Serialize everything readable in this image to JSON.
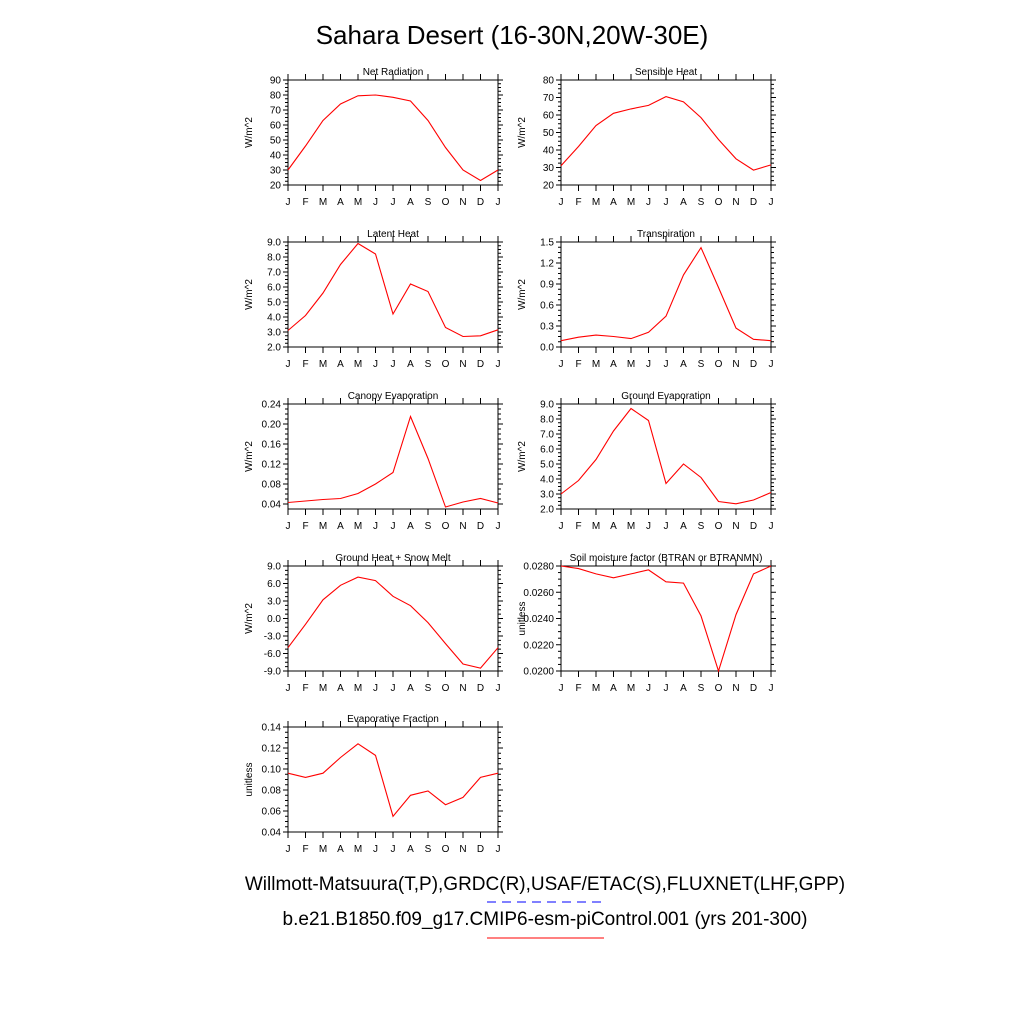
{
  "title": "Sahara Desert (16-30N,20W-30E)",
  "legend": [
    {
      "text": "Willmott-Matsuura(T,P),GRDC(R),USAF/ETAC(S),FLUXNET(LHF,GPP)",
      "color": "#0000ff",
      "dash": "dashed"
    },
    {
      "text": "b.e21.B1850.f09_g17.CMIP6-esm-piControl.001 (yrs 201-300)",
      "color": "#ff0000",
      "dash": "solid"
    }
  ],
  "colors": {
    "series": "#ff0000",
    "axis": "#000000"
  },
  "chart_data": [
    {
      "type": "line",
      "title": "Net Radiation",
      "ylabel": "W/m^2",
      "categories": [
        "J",
        "F",
        "M",
        "A",
        "M",
        "J",
        "J",
        "A",
        "S",
        "O",
        "N",
        "D",
        "J"
      ],
      "ylim": [
        20,
        90
      ],
      "yticks": [
        "20",
        "30",
        "40",
        "50",
        "60",
        "70",
        "80",
        "90"
      ],
      "series": [
        {
          "values": [
            30,
            46,
            63,
            74,
            79.5,
            80,
            78.5,
            76,
            63,
            45,
            30,
            23,
            30
          ]
        }
      ]
    },
    {
      "type": "line",
      "title": "Sensible Heat",
      "ylabel": "W/m^2",
      "categories": [
        "J",
        "F",
        "M",
        "A",
        "M",
        "J",
        "J",
        "A",
        "S",
        "O",
        "N",
        "D",
        "J"
      ],
      "ylim": [
        20,
        80
      ],
      "yticks": [
        "20",
        "30",
        "40",
        "50",
        "60",
        "70",
        "80"
      ],
      "series": [
        {
          "values": [
            31,
            42,
            54,
            61,
            63.5,
            65.5,
            70.5,
            67.5,
            58.5,
            46,
            35,
            28.5,
            31.5
          ]
        }
      ]
    },
    {
      "type": "line",
      "title": "Latent Heat",
      "ylabel": "W/m^2",
      "categories": [
        "J",
        "F",
        "M",
        "A",
        "M",
        "J",
        "J",
        "A",
        "S",
        "O",
        "N",
        "D",
        "J"
      ],
      "ylim": [
        2,
        9
      ],
      "yticks": [
        "2.0",
        "3.0",
        "4.0",
        "5.0",
        "6.0",
        "7.0",
        "8.0",
        "9.0"
      ],
      "series": [
        {
          "values": [
            3.1,
            4.1,
            5.6,
            7.5,
            8.9,
            8.2,
            4.2,
            6.2,
            5.7,
            3.3,
            2.7,
            2.75,
            3.15
          ]
        }
      ]
    },
    {
      "type": "line",
      "title": "Transpiration",
      "ylabel": "W/m^2",
      "categories": [
        "J",
        "F",
        "M",
        "A",
        "M",
        "J",
        "J",
        "A",
        "S",
        "O",
        "N",
        "D",
        "J"
      ],
      "ylim": [
        0,
        1.5
      ],
      "yticks": [
        "0.0",
        "0.3",
        "0.6",
        "0.9",
        "1.2",
        "1.5"
      ],
      "series": [
        {
          "values": [
            0.09,
            0.14,
            0.17,
            0.15,
            0.12,
            0.21,
            0.44,
            1.03,
            1.42,
            0.85,
            0.27,
            0.11,
            0.09
          ]
        }
      ]
    },
    {
      "type": "line",
      "title": "Canopy Evaporation",
      "ylabel": "W/m^2",
      "categories": [
        "J",
        "F",
        "M",
        "A",
        "M",
        "J",
        "J",
        "A",
        "S",
        "O",
        "N",
        "D",
        "J"
      ],
      "ylim": [
        0.03,
        0.24
      ],
      "yticks": [
        "0.04",
        "0.08",
        "0.12",
        "0.16",
        "0.20",
        "0.24"
      ],
      "series": [
        {
          "values": [
            0.043,
            0.046,
            0.049,
            0.051,
            0.061,
            0.08,
            0.103,
            0.215,
            0.131,
            0.034,
            0.044,
            0.051,
            0.042
          ]
        }
      ]
    },
    {
      "type": "line",
      "title": "Ground Evaporation",
      "ylabel": "W/m^2",
      "categories": [
        "J",
        "F",
        "M",
        "A",
        "M",
        "J",
        "J",
        "A",
        "S",
        "O",
        "N",
        "D",
        "J"
      ],
      "ylim": [
        2,
        9
      ],
      "yticks": [
        "2.0",
        "3.0",
        "4.0",
        "5.0",
        "6.0",
        "7.0",
        "8.0",
        "9.0"
      ],
      "series": [
        {
          "values": [
            3.0,
            3.9,
            5.3,
            7.2,
            8.7,
            7.9,
            3.7,
            5.0,
            4.1,
            2.5,
            2.35,
            2.6,
            3.1
          ]
        }
      ]
    },
    {
      "type": "line",
      "title": "Ground Heat + Snow Melt",
      "ylabel": "W/m^2",
      "categories": [
        "J",
        "F",
        "M",
        "A",
        "M",
        "J",
        "J",
        "A",
        "S",
        "O",
        "N",
        "D",
        "J"
      ],
      "ylim": [
        -9,
        9
      ],
      "yticks": [
        "-9.0",
        "-6.0",
        "-3.0",
        "0.0",
        "3.0",
        "6.0",
        "9.0"
      ],
      "series": [
        {
          "values": [
            -5,
            -1,
            3.2,
            5.7,
            7.1,
            6.5,
            3.8,
            2.2,
            -0.7,
            -4.3,
            -7.8,
            -8.5,
            -5
          ]
        }
      ]
    },
    {
      "type": "line",
      "title": "Soil moisture factor (BTRAN or BTRANMN)",
      "ylabel": "unitless",
      "categories": [
        "J",
        "F",
        "M",
        "A",
        "M",
        "J",
        "J",
        "A",
        "S",
        "O",
        "N",
        "D",
        "J"
      ],
      "ylim": [
        0.02,
        0.028
      ],
      "yticks": [
        "0.0200",
        "0.0220",
        "0.0240",
        "0.0260",
        "0.0280"
      ],
      "series": [
        {
          "values": [
            0.028,
            0.0278,
            0.0274,
            0.0271,
            0.0274,
            0.0277,
            0.0268,
            0.0267,
            0.0242,
            0.02,
            0.0243,
            0.0274,
            0.028
          ]
        }
      ]
    },
    {
      "type": "line",
      "title": "Evaporative Fraction",
      "ylabel": "unitless",
      "categories": [
        "J",
        "F",
        "M",
        "A",
        "M",
        "J",
        "J",
        "A",
        "S",
        "O",
        "N",
        "D",
        "J"
      ],
      "ylim": [
        0.04,
        0.14
      ],
      "yticks": [
        "0.04",
        "0.06",
        "0.08",
        "0.10",
        "0.12",
        "0.14"
      ],
      "series": [
        {
          "values": [
            0.096,
            0.092,
            0.096,
            0.111,
            0.124,
            0.113,
            0.055,
            0.075,
            0.079,
            0.066,
            0.073,
            0.092,
            0.096
          ]
        }
      ]
    }
  ]
}
